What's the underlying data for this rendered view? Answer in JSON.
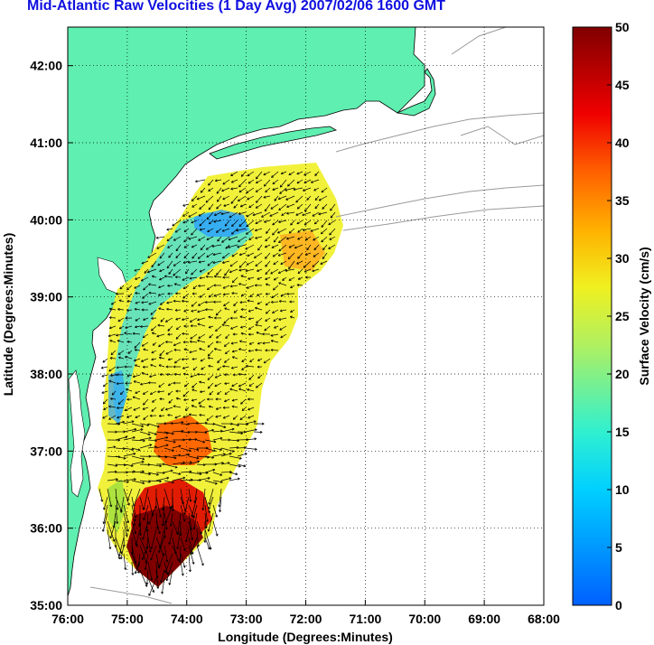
{
  "title": "Mid-Atlantic Raw Velocities (1 Day Avg) 2007/02/06 1600 GMT",
  "map": {
    "x_label": "Longitude (Degrees:Minutes)",
    "y_label": "Latitude (Degrees:Minutes)",
    "x_range": [
      -76,
      -68
    ],
    "y_range": [
      35,
      42.5
    ],
    "x_ticks": [
      "76:00",
      "75:00",
      "74:00",
      "73:00",
      "72:00",
      "71:00",
      "70:00",
      "69:00",
      "68:00"
    ],
    "y_ticks": [
      "35:00",
      "36:00",
      "37:00",
      "38:00",
      "39:00",
      "40:00",
      "41:00",
      "42:00"
    ],
    "grid": true,
    "land_color": "#5fefb0",
    "colors": {
      "title": "#1010e0",
      "land": "#5fefb0",
      "coastline": "#000000",
      "bathymetry": "#9a9a9a",
      "arrows": "#000000"
    }
  },
  "colorbar": {
    "label": "Surface Velocity (cm/s)",
    "ticks": [
      "0",
      "5",
      "10",
      "15",
      "20",
      "25",
      "30",
      "35",
      "40",
      "45",
      "50"
    ],
    "min": 0,
    "max": 50,
    "colormap": "jet"
  }
}
